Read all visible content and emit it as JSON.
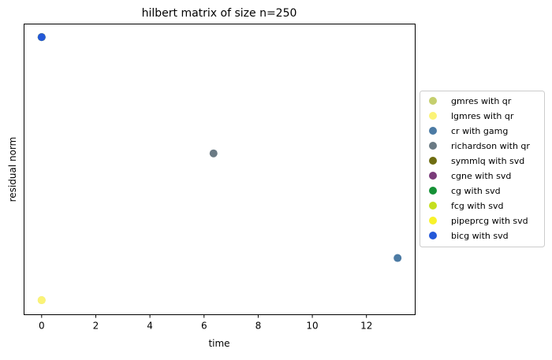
{
  "chart_data": {
    "type": "scatter",
    "title": "hilbert matrix of size n=250",
    "xlabel": "time",
    "ylabel": "residual norm",
    "xlim": [
      -0.65,
      13.8
    ],
    "ylim": [
      0,
      1
    ],
    "x_ticks": [
      0,
      2,
      4,
      6,
      8,
      10,
      12
    ],
    "x_tick_labels": [
      "0",
      "2",
      "4",
      "6",
      "8",
      "10",
      "12"
    ],
    "y_ticks_visible": false,
    "grid": false,
    "legend_placement": "right, outside plot",
    "series": [
      {
        "name": "gmres with qr",
        "color": "#c5cf6e",
        "points": [
          {
            "x": 0.0,
            "y": 0.05
          }
        ]
      },
      {
        "name": "lgmres with qr",
        "color": "#fbf377",
        "points": [
          {
            "x": 0.0,
            "y": 0.05
          }
        ]
      },
      {
        "name": "cr with gamg",
        "color": "#4c7ba4",
        "points": [
          {
            "x": 13.15,
            "y": 0.195
          }
        ]
      },
      {
        "name": "richardson with qr",
        "color": "#6a7a84",
        "points": [
          {
            "x": 6.35,
            "y": 0.555
          }
        ]
      },
      {
        "name": "symmlq with svd",
        "color": "#6e6c11",
        "points": [
          {
            "x": 0.0,
            "y": 0.955
          }
        ]
      },
      {
        "name": "cgne with svd",
        "color": "#7a3b79",
        "points": [
          {
            "x": 0.0,
            "y": 0.955
          }
        ]
      },
      {
        "name": "cg with svd",
        "color": "#159136",
        "points": [
          {
            "x": 0.0,
            "y": 0.955
          }
        ]
      },
      {
        "name": "fcg with svd",
        "color": "#c5df1f",
        "points": [
          {
            "x": 0.0,
            "y": 0.955
          }
        ]
      },
      {
        "name": "pipeprcg with svd",
        "color": "#f8f22b",
        "points": [
          {
            "x": 0.0,
            "y": 0.955
          }
        ]
      },
      {
        "name": "bicg with svd",
        "color": "#2458d8",
        "points": [
          {
            "x": 0.0,
            "y": 0.955
          }
        ]
      }
    ]
  }
}
